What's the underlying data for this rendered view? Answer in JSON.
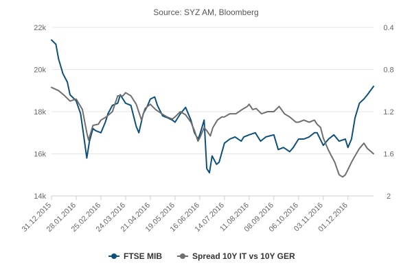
{
  "chart_data": {
    "type": "line",
    "subtitle": "Source: SYZ AM, Bloomberg",
    "x_tick_labels": [
      "31.12.2015",
      "28.01.2016",
      "25.02.2016",
      "24.03.2016",
      "21.04.2016",
      "19.05.2016",
      "16.06.2016",
      "14.07.2016",
      "11.08.2016",
      "08.09.2016",
      "06.10.2016",
      "03.11.2016",
      "01.12.2016"
    ],
    "x_range": [
      "31.12.2015",
      "30.12.2016"
    ],
    "y_left": {
      "ticks": [
        "14k",
        "16k",
        "18k",
        "20k",
        "22k"
      ],
      "range": [
        14000,
        22000
      ]
    },
    "y_right": {
      "ticks": [
        "0.4",
        "0.8",
        "1.2",
        "1.6",
        "2"
      ],
      "range": [
        0.4,
        2.0
      ],
      "reversed": true
    },
    "grid": true,
    "legend_position": "bottom-center",
    "series": [
      {
        "name": "FTSE MIB",
        "color": "#0b4f7c",
        "axis": "left",
        "points": [
          [
            "31.12.2015",
            21400
          ],
          [
            "05.01.2016",
            21200
          ],
          [
            "08.01.2016",
            20500
          ],
          [
            "13.01.2016",
            19800
          ],
          [
            "18.01.2016",
            19400
          ],
          [
            "21.01.2016",
            18800
          ],
          [
            "26.01.2016",
            18600
          ],
          [
            "28.01.2016",
            18500
          ],
          [
            "02.02.2016",
            17900
          ],
          [
            "05.02.2016",
            17000
          ],
          [
            "09.02.2016",
            15800
          ],
          [
            "12.02.2016",
            16600
          ],
          [
            "16.02.2016",
            17200
          ],
          [
            "19.02.2016",
            17100
          ],
          [
            "25.02.2016",
            17000
          ],
          [
            "01.03.2016",
            17500
          ],
          [
            "04.03.2016",
            17900
          ],
          [
            "09.03.2016",
            18300
          ],
          [
            "15.03.2016",
            18400
          ],
          [
            "18.03.2016",
            18800
          ],
          [
            "24.03.2016",
            18400
          ],
          [
            "30.03.2016",
            18300
          ],
          [
            "05.04.2016",
            17300
          ],
          [
            "08.04.2016",
            17000
          ],
          [
            "13.04.2016",
            17900
          ],
          [
            "18.04.2016",
            18300
          ],
          [
            "21.04.2016",
            18600
          ],
          [
            "26.04.2016",
            18700
          ],
          [
            "29.04.2016",
            18300
          ],
          [
            "05.05.2016",
            17800
          ],
          [
            "11.05.2016",
            17700
          ],
          [
            "16.05.2016",
            17600
          ],
          [
            "19.05.2016",
            17500
          ],
          [
            "25.05.2016",
            17900
          ],
          [
            "31.05.2016",
            18200
          ],
          [
            "06.06.2016",
            17600
          ],
          [
            "10.06.2016",
            17000
          ],
          [
            "14.06.2016",
            16700
          ],
          [
            "16.06.2016",
            16900
          ],
          [
            "21.06.2016",
            17600
          ],
          [
            "24.06.2016",
            15300
          ],
          [
            "27.06.2016",
            15100
          ],
          [
            "30.06.2016",
            15900
          ],
          [
            "05.07.2016",
            15500
          ],
          [
            "08.07.2016",
            15600
          ],
          [
            "14.07.2016",
            16500
          ],
          [
            "20.07.2016",
            16700
          ],
          [
            "26.07.2016",
            16800
          ],
          [
            "02.08.2016",
            16600
          ],
          [
            "05.08.2016",
            16800
          ],
          [
            "11.08.2016",
            16900
          ],
          [
            "18.08.2016",
            17000
          ],
          [
            "24.08.2016",
            16600
          ],
          [
            "30.08.2016",
            16800
          ],
          [
            "08.09.2016",
            16900
          ],
          [
            "13.09.2016",
            16200
          ],
          [
            "19.09.2016",
            16300
          ],
          [
            "26.09.2016",
            16100
          ],
          [
            "30.09.2016",
            16300
          ],
          [
            "06.10.2016",
            16700
          ],
          [
            "12.10.2016",
            16700
          ],
          [
            "18.10.2016",
            16800
          ],
          [
            "24.10.2016",
            17000
          ],
          [
            "27.10.2016",
            17000
          ],
          [
            "03.11.2016",
            16400
          ],
          [
            "09.11.2016",
            16700
          ],
          [
            "15.11.2016",
            16900
          ],
          [
            "21.11.2016",
            16600
          ],
          [
            "28.11.2016",
            16700
          ],
          [
            "01.12.2016",
            16300
          ],
          [
            "05.12.2016",
            16700
          ],
          [
            "09.12.2016",
            17700
          ],
          [
            "14.12.2016",
            18400
          ],
          [
            "19.12.2016",
            18600
          ],
          [
            "23.12.2016",
            18800
          ],
          [
            "30.12.2016",
            19200
          ]
        ]
      },
      {
        "name": "Spread 10Y IT vs 10Y GER",
        "color": "#6e6e6e",
        "axis": "right",
        "points": [
          [
            "31.12.2015",
            0.97
          ],
          [
            "08.01.2016",
            1.0
          ],
          [
            "15.01.2016",
            1.05
          ],
          [
            "21.01.2016",
            1.1
          ],
          [
            "28.01.2016",
            1.08
          ],
          [
            "04.02.2016",
            1.18
          ],
          [
            "09.02.2016",
            1.4
          ],
          [
            "11.02.2016",
            1.47
          ],
          [
            "16.02.2016",
            1.33
          ],
          [
            "22.02.2016",
            1.32
          ],
          [
            "25.02.2016",
            1.28
          ],
          [
            "02.03.2016",
            1.25
          ],
          [
            "09.03.2016",
            1.2
          ],
          [
            "15.03.2016",
            1.05
          ],
          [
            "21.03.2016",
            1.05
          ],
          [
            "24.03.2016",
            1.02
          ],
          [
            "30.03.2016",
            1.05
          ],
          [
            "05.04.2016",
            1.13
          ],
          [
            "11.04.2016",
            1.28
          ],
          [
            "15.04.2016",
            1.17
          ],
          [
            "21.04.2016",
            1.13
          ],
          [
            "27.04.2016",
            1.18
          ],
          [
            "04.05.2016",
            1.22
          ],
          [
            "10.05.2016",
            1.25
          ],
          [
            "16.05.2016",
            1.27
          ],
          [
            "19.05.2016",
            1.25
          ],
          [
            "25.05.2016",
            1.2
          ],
          [
            "31.05.2016",
            1.23
          ],
          [
            "06.06.2016",
            1.3
          ],
          [
            "10.06.2016",
            1.38
          ],
          [
            "14.06.2016",
            1.48
          ],
          [
            "16.06.2016",
            1.45
          ],
          [
            "21.06.2016",
            1.35
          ],
          [
            "24.06.2016",
            1.38
          ],
          [
            "28.06.2016",
            1.43
          ],
          [
            "01.07.2016",
            1.35
          ],
          [
            "06.07.2016",
            1.28
          ],
          [
            "11.07.2016",
            1.25
          ],
          [
            "14.07.2016",
            1.25
          ],
          [
            "20.07.2016",
            1.22
          ],
          [
            "27.07.2016",
            1.22
          ],
          [
            "03.08.2016",
            1.18
          ],
          [
            "09.08.2016",
            1.15
          ],
          [
            "11.08.2016",
            1.13
          ],
          [
            "15.08.2016",
            1.18
          ],
          [
            "19.08.2016",
            1.17
          ],
          [
            "25.08.2016",
            1.22
          ],
          [
            "01.09.2016",
            1.2
          ],
          [
            "08.09.2016",
            1.2
          ],
          [
            "14.09.2016",
            1.15
          ],
          [
            "20.09.2016",
            1.22
          ],
          [
            "26.09.2016",
            1.25
          ],
          [
            "03.10.2016",
            1.3
          ],
          [
            "06.10.2016",
            1.3
          ],
          [
            "12.10.2016",
            1.28
          ],
          [
            "18.10.2016",
            1.3
          ],
          [
            "24.10.2016",
            1.28
          ],
          [
            "27.10.2016",
            1.32
          ],
          [
            "31.10.2016",
            1.35
          ],
          [
            "03.11.2016",
            1.45
          ],
          [
            "08.11.2016",
            1.55
          ],
          [
            "11.11.2016",
            1.6
          ],
          [
            "16.11.2016",
            1.68
          ],
          [
            "21.11.2016",
            1.8
          ],
          [
            "25.11.2016",
            1.82
          ],
          [
            "28.11.2016",
            1.8
          ],
          [
            "01.12.2016",
            1.75
          ],
          [
            "05.12.2016",
            1.68
          ],
          [
            "09.12.2016",
            1.62
          ],
          [
            "14.12.2016",
            1.55
          ],
          [
            "19.12.2016",
            1.5
          ],
          [
            "23.12.2016",
            1.55
          ],
          [
            "30.12.2016",
            1.6
          ]
        ]
      }
    ]
  }
}
